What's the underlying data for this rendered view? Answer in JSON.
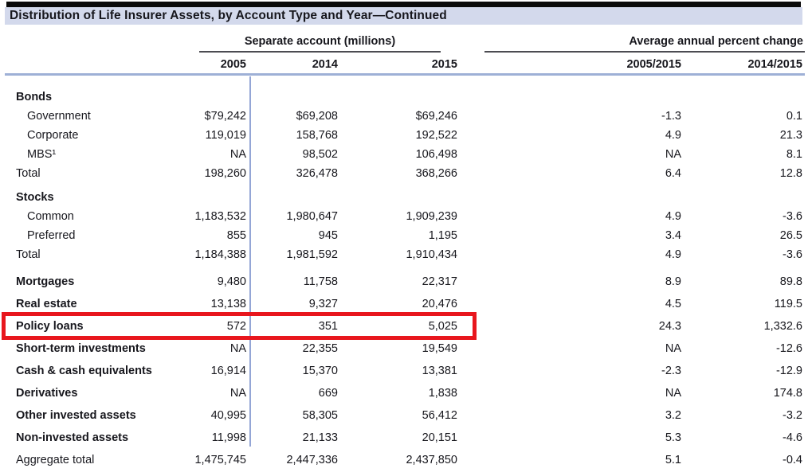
{
  "title": "Distribution of Life Insurer Assets, by Account Type and Year—Continued",
  "header": {
    "group1": "Separate account (millions)",
    "group2": "Average annual percent change",
    "columns": [
      "2005",
      "2014",
      "2015",
      "2005/2015",
      "2014/2015"
    ]
  },
  "colors": {
    "title_bg": "#d3d9ec",
    "header_blue_rule": "#9eb0d6",
    "column_divider_blue": "#94a6d6",
    "highlight_red": "#e8161d",
    "text": "#17171d"
  },
  "table": {
    "rows": [
      {
        "label": "Bonds",
        "style": "section",
        "values": []
      },
      {
        "label": "Government",
        "style": "indent",
        "values": [
          "$79,242",
          "$69,208",
          "$69,246",
          "-1.3",
          "0.1"
        ]
      },
      {
        "label": "Corporate",
        "style": "indent",
        "values": [
          "119,019",
          "158,768",
          "192,522",
          "4.9",
          "21.3"
        ]
      },
      {
        "label": "MBS¹",
        "style": "indent",
        "values": [
          "NA",
          "98,502",
          "106,498",
          "NA",
          "8.1"
        ]
      },
      {
        "label": "Total",
        "style": "plain",
        "values": [
          "198,260",
          "326,478",
          "368,266",
          "6.4",
          "12.8"
        ]
      },
      {
        "label": "Stocks",
        "style": "section gap-sm",
        "values": []
      },
      {
        "label": "Common",
        "style": "indent",
        "values": [
          "1,183,532",
          "1,980,647",
          "1,909,239",
          "4.9",
          "-3.6"
        ]
      },
      {
        "label": "Preferred",
        "style": "indent",
        "values": [
          "855",
          "945",
          "1,195",
          "3.4",
          "26.5"
        ]
      },
      {
        "label": "Total",
        "style": "plain",
        "values": [
          "1,184,388",
          "1,981,592",
          "1,910,434",
          "4.9",
          "-3.6"
        ]
      },
      {
        "label": "Mortgages",
        "style": "bold tall gap-md",
        "values": [
          "9,480",
          "11,758",
          "22,317",
          "8.9",
          "89.8"
        ]
      },
      {
        "label": "Real estate",
        "style": "bold tall",
        "values": [
          "13,138",
          "9,327",
          "20,476",
          "4.5",
          "119.5"
        ]
      },
      {
        "label": "Policy loans",
        "style": "bold tall",
        "highlight": true,
        "values": [
          "572",
          "351",
          "5,025",
          "24.3",
          "1,332.6"
        ]
      },
      {
        "label": "Short-term investments",
        "style": "bold tall",
        "values": [
          "NA",
          "22,355",
          "19,549",
          "NA",
          "-12.6"
        ]
      },
      {
        "label": "Cash & cash equivalents",
        "style": "bold tall",
        "values": [
          "16,914",
          "15,370",
          "13,381",
          "-2.3",
          "-12.9"
        ]
      },
      {
        "label": "Derivatives",
        "style": "bold tall",
        "values": [
          "NA",
          "669",
          "1,838",
          "NA",
          "174.8"
        ]
      },
      {
        "label": "Other invested assets",
        "style": "bold tall",
        "values": [
          "40,995",
          "58,305",
          "56,412",
          "3.2",
          "-3.2"
        ]
      },
      {
        "label": "Non-invested assets",
        "style": "bold tall",
        "values": [
          "11,998",
          "21,133",
          "20,151",
          "5.3",
          "-4.6"
        ]
      },
      {
        "label": "Aggregate total",
        "style": "plain tall",
        "values": [
          "1,475,745",
          "2,447,336",
          "2,437,850",
          "5.1",
          "-0.4"
        ]
      }
    ]
  }
}
